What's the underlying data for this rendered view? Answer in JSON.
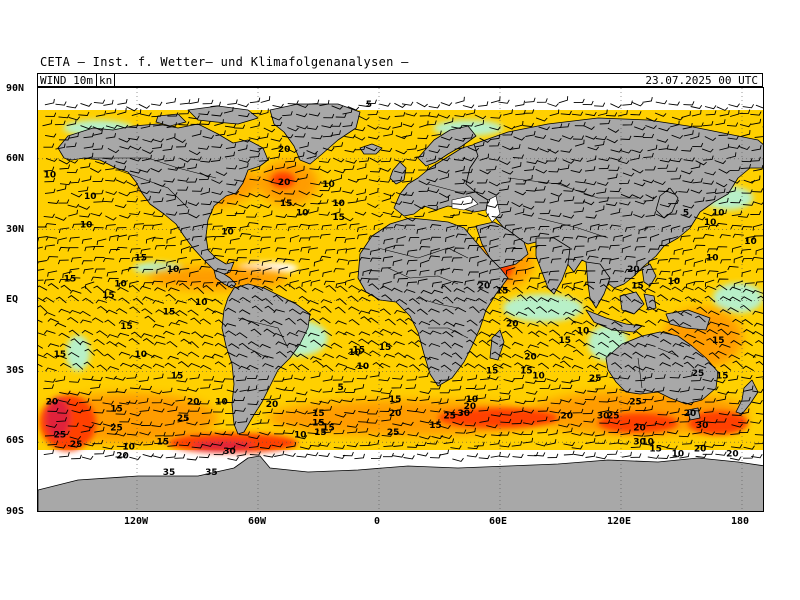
{
  "header": {
    "title": "CETA — Inst. f. Wetter— und Klimafolgenanalysen —"
  },
  "panel": {
    "variable": "WIND  10m",
    "unit": "kn",
    "datetime": "23.07.2025 00 UTC"
  },
  "axes": {
    "lat_labels": [
      "90N",
      "60N",
      "30N",
      "EQ",
      "30S",
      "60S",
      "90S"
    ],
    "lon_labels": [
      "120W",
      "60W",
      "0",
      "60E",
      "120E",
      "180"
    ]
  },
  "colors": {
    "land": "#a8a8a8",
    "calm": "#ffffff",
    "low": "#b8f0c8",
    "mid": "#ffd000",
    "high": "#ff9a00",
    "very_high": "#ff4000",
    "extreme": "#e0203a",
    "barb": "#000000"
  },
  "wind_labels": [
    {
      "text": "5",
      "lon": -5,
      "lat": 82
    },
    {
      "text": "10",
      "lon": -163,
      "lat": 52
    },
    {
      "text": "10",
      "lon": -143,
      "lat": 43
    },
    {
      "text": "10",
      "lon": -145,
      "lat": 31
    },
    {
      "text": "20",
      "lon": -47,
      "lat": 63
    },
    {
      "text": "20",
      "lon": -47,
      "lat": 49
    },
    {
      "text": "15",
      "lon": -46,
      "lat": 40
    },
    {
      "text": "10",
      "lon": -25,
      "lat": 48
    },
    {
      "text": "10",
      "lon": -38,
      "lat": 36
    },
    {
      "text": "10",
      "lon": -20,
      "lat": 40
    },
    {
      "text": "15",
      "lon": -20,
      "lat": 34
    },
    {
      "text": "10",
      "lon": -75,
      "lat": 28
    },
    {
      "text": "15",
      "lon": -118,
      "lat": 17
    },
    {
      "text": "10",
      "lon": -102,
      "lat": 12
    },
    {
      "text": "15",
      "lon": -153,
      "lat": 8
    },
    {
      "text": "10",
      "lon": -128,
      "lat": 6
    },
    {
      "text": "15",
      "lon": -134,
      "lat": 1
    },
    {
      "text": "10",
      "lon": -88,
      "lat": -2
    },
    {
      "text": "15",
      "lon": -104,
      "lat": -6
    },
    {
      "text": "15",
      "lon": -125,
      "lat": -12
    },
    {
      "text": "15",
      "lon": -158,
      "lat": -24
    },
    {
      "text": "10",
      "lon": -118,
      "lat": -24
    },
    {
      "text": "15",
      "lon": -100,
      "lat": -33
    },
    {
      "text": "20",
      "lon": -162,
      "lat": -44
    },
    {
      "text": "15",
      "lon": -130,
      "lat": -47
    },
    {
      "text": "20",
      "lon": -92,
      "lat": -44
    },
    {
      "text": "10",
      "lon": -78,
      "lat": -44
    },
    {
      "text": "25",
      "lon": -97,
      "lat": -51
    },
    {
      "text": "25",
      "lon": -130,
      "lat": -55
    },
    {
      "text": "25",
      "lon": -150,
      "lat": -62
    },
    {
      "text": "25",
      "lon": -158,
      "lat": -58
    },
    {
      "text": "10",
      "lon": -124,
      "lat": -63
    },
    {
      "text": "20",
      "lon": -127,
      "lat": -67
    },
    {
      "text": "15",
      "lon": -107,
      "lat": -61
    },
    {
      "text": "35",
      "lon": -104,
      "lat": -74
    },
    {
      "text": "35",
      "lon": -83,
      "lat": -74
    },
    {
      "text": "30",
      "lon": -74,
      "lat": -65
    },
    {
      "text": "20",
      "lon": -53,
      "lat": -45
    },
    {
      "text": "15",
      "lon": -30,
      "lat": -49
    },
    {
      "text": "15",
      "lon": -30,
      "lat": -53
    },
    {
      "text": "15",
      "lon": -25,
      "lat": -55
    },
    {
      "text": "10",
      "lon": -39,
      "lat": -58
    },
    {
      "text": "15",
      "lon": -29,
      "lat": -57
    },
    {
      "text": "10",
      "lon": -12,
      "lat": -23
    },
    {
      "text": "15",
      "lon": -10,
      "lat": -22
    },
    {
      "text": "10",
      "lon": -8,
      "lat": -29
    },
    {
      "text": "5",
      "lon": -19,
      "lat": -38
    },
    {
      "text": "15",
      "lon": 3,
      "lat": -21
    },
    {
      "text": "15",
      "lon": 8,
      "lat": -43
    },
    {
      "text": "20",
      "lon": 8,
      "lat": -49
    },
    {
      "text": "25",
      "lon": 7,
      "lat": -57
    },
    {
      "text": "15",
      "lon": 28,
      "lat": -54
    },
    {
      "text": "25",
      "lon": 35,
      "lat": -50
    },
    {
      "text": "30",
      "lon": 42,
      "lat": -49
    },
    {
      "text": "20",
      "lon": 45,
      "lat": -46
    },
    {
      "text": "10",
      "lon": 46,
      "lat": -43
    },
    {
      "text": "20",
      "lon": 52,
      "lat": 5
    },
    {
      "text": "15",
      "lon": 61,
      "lat": 3
    },
    {
      "text": "20",
      "lon": 66,
      "lat": -11
    },
    {
      "text": "15",
      "lon": 56,
      "lat": -31
    },
    {
      "text": "15",
      "lon": 73,
      "lat": -31
    },
    {
      "text": "20",
      "lon": 75,
      "lat": -25
    },
    {
      "text": "10",
      "lon": 79,
      "lat": -33
    },
    {
      "text": "15",
      "lon": 92,
      "lat": -18
    },
    {
      "text": "10",
      "lon": 101,
      "lat": -14
    },
    {
      "text": "25",
      "lon": 107,
      "lat": -34
    },
    {
      "text": "20",
      "lon": 93,
      "lat": -50
    },
    {
      "text": "30",
      "lon": 111,
      "lat": -50
    },
    {
      "text": "25",
      "lon": 116,
      "lat": -50
    },
    {
      "text": "25",
      "lon": 127,
      "lat": -44
    },
    {
      "text": "20",
      "lon": 129,
      "lat": -55
    },
    {
      "text": "30",
      "lon": 129,
      "lat": -61
    },
    {
      "text": "10",
      "lon": 133,
      "lat": -61
    },
    {
      "text": "15",
      "lon": 137,
      "lat": -64
    },
    {
      "text": "10",
      "lon": 148,
      "lat": -66
    },
    {
      "text": "20",
      "lon": 159,
      "lat": -64
    },
    {
      "text": "20",
      "lon": 175,
      "lat": -66
    },
    {
      "text": "20",
      "lon": 154,
      "lat": -49
    },
    {
      "text": "30",
      "lon": 160,
      "lat": -54
    },
    {
      "text": "25",
      "lon": 158,
      "lat": -32
    },
    {
      "text": "15",
      "lon": 170,
      "lat": -33
    },
    {
      "text": "15",
      "lon": 168,
      "lat": -18
    },
    {
      "text": "20",
      "lon": 126,
      "lat": 12
    },
    {
      "text": "15",
      "lon": 128,
      "lat": 5
    },
    {
      "text": "10",
      "lon": 146,
      "lat": 7
    },
    {
      "text": "10",
      "lon": 165,
      "lat": 17
    },
    {
      "text": "5",
      "lon": 152,
      "lat": 36
    },
    {
      "text": "10",
      "lon": 168,
      "lat": 36
    },
    {
      "text": "10",
      "lon": 164,
      "lat": 32
    },
    {
      "text": "10",
      "lon": 184,
      "lat": 24
    }
  ]
}
